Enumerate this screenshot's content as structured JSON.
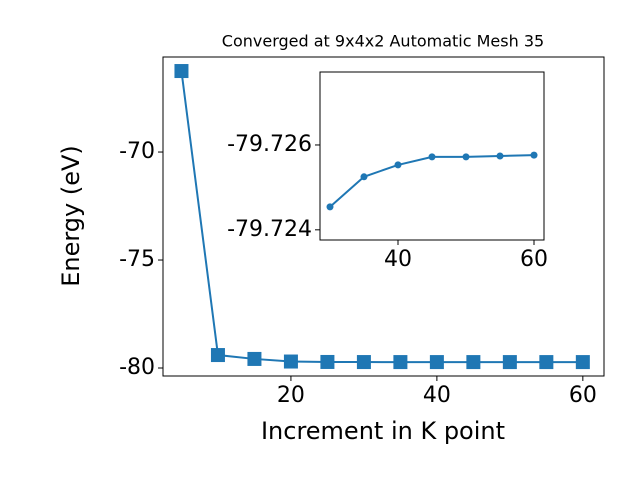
{
  "chart_data": [
    {
      "type": "line",
      "title": "Converged at 9x4x2 Automatic Mesh 35",
      "x_label": "Increment in K point",
      "y_label": "Energy (eV)",
      "x": [
        5,
        10,
        15,
        20,
        25,
        30,
        35,
        40,
        45,
        50,
        55,
        60
      ],
      "values": [
        -66.25,
        -79.4,
        -79.58,
        -79.7,
        -79.72,
        -79.7245,
        -79.7253,
        -79.7255,
        -79.7257,
        -79.7257,
        -79.7257,
        -79.7258
      ],
      "color": "#1f77b4",
      "marker": "square",
      "xlim": [
        2.47,
        62.9
      ],
      "ylim": [
        -80.37,
        -65.6
      ],
      "xticks": [
        20,
        40,
        60
      ],
      "yticks": [
        -80,
        -75,
        -70
      ]
    },
    {
      "type": "line",
      "x": [
        30,
        35,
        40,
        45,
        50,
        55,
        60
      ],
      "values": [
        -79.72454,
        -79.72525,
        -79.72553,
        -79.72572,
        -79.72572,
        -79.72574,
        -79.72576
      ],
      "color": "#1f77b4",
      "marker": "circle",
      "xlim": [
        28.53,
        61.47
      ],
      "ylim": [
        -79.72376,
        -79.72772
      ],
      "xticks": [
        40,
        60
      ],
      "yticks": [
        -79.726,
        -79.724
      ]
    }
  ]
}
